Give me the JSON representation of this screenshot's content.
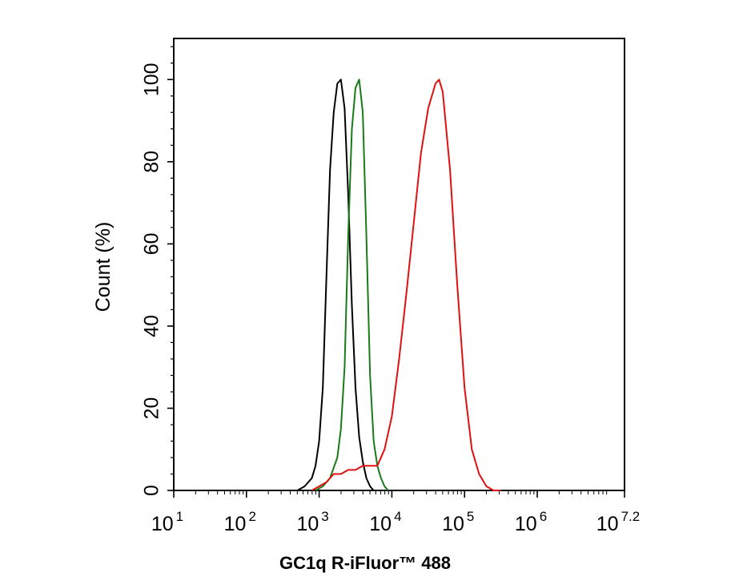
{
  "chart_data": {
    "type": "line",
    "title": "",
    "xlabel": "GC1q R-iFluor™ 488",
    "ylabel": "Count  (%)",
    "x_scale": "log10",
    "xlim": [
      10,
      15848932
    ],
    "ylim": [
      0,
      110
    ],
    "x_ticks": [
      {
        "base": "10",
        "exp": "1"
      },
      {
        "base": "10",
        "exp": "2"
      },
      {
        "base": "10",
        "exp": "3"
      },
      {
        "base": "10",
        "exp": "4"
      },
      {
        "base": "10",
        "exp": "5"
      },
      {
        "base": "10",
        "exp": "6"
      },
      {
        "base": "10",
        "exp": "7.2"
      }
    ],
    "y_ticks": [
      "0",
      "20",
      "40",
      "60",
      "80",
      "100"
    ],
    "grid": false,
    "legend": "none",
    "series": [
      {
        "color": "#000000",
        "x": [
          501,
          631,
          794,
          891,
          1000,
          1122,
          1259,
          1413,
          1585,
          1778,
          1995,
          2239,
          2512,
          2818,
          3162,
          3548,
          3981,
          4467,
          5012,
          5623
        ],
        "y": [
          0,
          1,
          3,
          6,
          12,
          25,
          52,
          78,
          92,
          99,
          100,
          93,
          72,
          45,
          25,
          13,
          7,
          3,
          1,
          0
        ]
      },
      {
        "color": "#1a7a1a",
        "x": [
          891,
          1122,
          1413,
          1778,
          1995,
          2239,
          2512,
          2818,
          3162,
          3548,
          3981,
          4467,
          5012,
          5623,
          6310,
          7079,
          7943,
          8913
        ],
        "y": [
          0,
          1,
          3,
          8,
          15,
          30,
          62,
          88,
          98,
          100,
          92,
          62,
          28,
          12,
          6,
          3,
          1,
          0
        ]
      },
      {
        "color": "#e01010",
        "x": [
          794,
          1000,
          1259,
          1585,
          1995,
          2512,
          3162,
          3981,
          5012,
          6310,
          7943,
          10000,
          12589,
          15849,
          19953,
          25119,
          31623,
          39811,
          44668,
          50119,
          63096,
          79433,
          100000,
          125893,
          158489,
          199526,
          251189,
          316228
        ],
        "y": [
          0,
          1,
          2,
          4,
          4,
          5,
          5,
          6,
          6,
          6,
          10,
          18,
          32,
          48,
          65,
          82,
          93,
          99,
          100,
          97,
          78,
          50,
          25,
          10,
          4,
          1,
          0,
          0
        ]
      }
    ]
  }
}
